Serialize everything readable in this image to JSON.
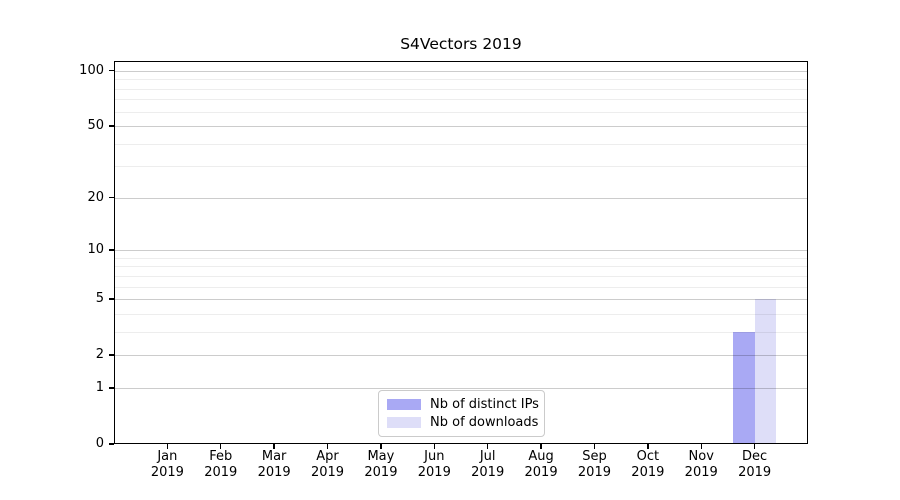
{
  "chart_data": {
    "type": "bar",
    "title": "S4Vectors 2019",
    "categories": [
      "Jan",
      "Feb",
      "Mar",
      "Apr",
      "May",
      "Jun",
      "Jul",
      "Aug",
      "Sep",
      "Oct",
      "Nov",
      "Dec"
    ],
    "x_tick_subline": "2019",
    "series": [
      {
        "name": "Nb of distinct IPs",
        "color": "#a9a9f4",
        "values": [
          0,
          0,
          0,
          0,
          0,
          0,
          0,
          0,
          0,
          0,
          0,
          3
        ]
      },
      {
        "name": "Nb of downloads",
        "color": "#dedef8",
        "values": [
          0,
          0,
          0,
          0,
          0,
          0,
          0,
          0,
          0,
          0,
          0,
          5
        ]
      }
    ],
    "y_axis": {
      "scale": "log1p",
      "max": 113,
      "major_ticks": [
        0,
        1,
        2,
        5,
        10,
        20,
        50,
        100
      ],
      "minor_gridlines": [
        3,
        4,
        6,
        7,
        8,
        9,
        30,
        40,
        60,
        70,
        80,
        90
      ]
    },
    "xlabel": "",
    "ylabel": "",
    "grid": true,
    "legend_position": "bottom-center"
  }
}
